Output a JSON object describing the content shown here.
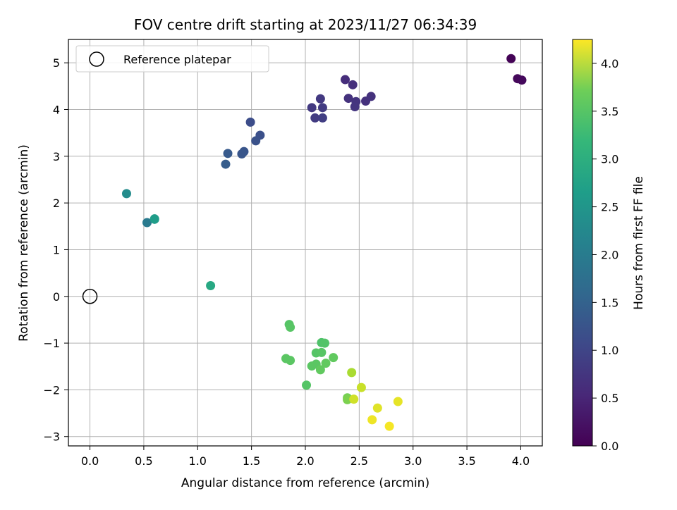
{
  "chart_data": {
    "type": "scatter",
    "title": "FOV centre drift starting at 2023/11/27 06:34:39",
    "xlabel": "Angular distance from reference (arcmin)",
    "ylabel": "Rotation from reference (arcmin)",
    "xlim": [
      -0.2,
      4.2
    ],
    "ylim": [
      -3.2,
      5.5
    ],
    "xticks": [
      "0.0",
      "0.5",
      "1.0",
      "1.5",
      "2.0",
      "2.5",
      "3.0",
      "3.5",
      "4.0"
    ],
    "yticks": [
      "−3",
      "−2",
      "−1",
      "0",
      "1",
      "2",
      "3",
      "4",
      "5"
    ],
    "grid": true,
    "legend": {
      "position": "top-left",
      "entries": [
        "Reference platepar"
      ]
    },
    "reference_point": {
      "x": 0.0,
      "y": 0.0
    },
    "colorbar": {
      "label": "Hours from first FF file",
      "colormap": "viridis",
      "range": [
        0.0,
        4.25
      ],
      "ticks": [
        "0.0",
        "0.5",
        "1.0",
        "1.5",
        "2.0",
        "2.5",
        "3.0",
        "3.5",
        "4.0"
      ]
    },
    "points": [
      {
        "x": 3.91,
        "y": 5.09,
        "c": 0.02
      },
      {
        "x": 3.97,
        "y": 4.66,
        "c": 0.08
      },
      {
        "x": 4.01,
        "y": 4.63,
        "c": 0.1
      },
      {
        "x": 2.37,
        "y": 4.64,
        "c": 0.55
      },
      {
        "x": 2.44,
        "y": 4.53,
        "c": 0.58
      },
      {
        "x": 2.4,
        "y": 4.24,
        "c": 0.62
      },
      {
        "x": 2.47,
        "y": 4.17,
        "c": 0.64
      },
      {
        "x": 2.46,
        "y": 4.06,
        "c": 0.66
      },
      {
        "x": 2.56,
        "y": 4.18,
        "c": 0.6
      },
      {
        "x": 2.61,
        "y": 4.28,
        "c": 0.62
      },
      {
        "x": 2.14,
        "y": 4.23,
        "c": 0.72
      },
      {
        "x": 2.06,
        "y": 4.04,
        "c": 0.72
      },
      {
        "x": 2.16,
        "y": 4.04,
        "c": 0.74
      },
      {
        "x": 2.09,
        "y": 3.82,
        "c": 0.76
      },
      {
        "x": 2.16,
        "y": 3.82,
        "c": 0.78
      },
      {
        "x": 1.49,
        "y": 3.73,
        "c": 1.0
      },
      {
        "x": 1.58,
        "y": 3.45,
        "c": 1.05
      },
      {
        "x": 1.54,
        "y": 3.33,
        "c": 1.08
      },
      {
        "x": 1.43,
        "y": 3.1,
        "c": 1.12
      },
      {
        "x": 1.41,
        "y": 3.05,
        "c": 1.14
      },
      {
        "x": 1.28,
        "y": 3.06,
        "c": 1.2
      },
      {
        "x": 1.26,
        "y": 2.83,
        "c": 1.25
      },
      {
        "x": 0.34,
        "y": 2.2,
        "c": 2.05
      },
      {
        "x": 0.53,
        "y": 1.58,
        "c": 1.75
      },
      {
        "x": 0.6,
        "y": 1.65,
        "c": 2.3
      },
      {
        "x": 0.6,
        "y": 1.66,
        "c": 2.35
      },
      {
        "x": 1.12,
        "y": 0.23,
        "c": 2.55
      },
      {
        "x": 1.85,
        "y": -0.6,
        "c": 3.1
      },
      {
        "x": 1.86,
        "y": -0.66,
        "c": 3.12
      },
      {
        "x": 2.15,
        "y": -0.99,
        "c": 3.05
      },
      {
        "x": 2.18,
        "y": -1.0,
        "c": 3.08
      },
      {
        "x": 2.1,
        "y": -1.21,
        "c": 3.1
      },
      {
        "x": 2.15,
        "y": -1.2,
        "c": 3.12
      },
      {
        "x": 1.82,
        "y": -1.33,
        "c": 3.15
      },
      {
        "x": 1.86,
        "y": -1.37,
        "c": 3.15
      },
      {
        "x": 2.19,
        "y": -1.43,
        "c": 3.2
      },
      {
        "x": 2.26,
        "y": -1.31,
        "c": 3.2
      },
      {
        "x": 2.1,
        "y": -1.45,
        "c": 3.15
      },
      {
        "x": 2.06,
        "y": -1.49,
        "c": 3.15
      },
      {
        "x": 2.14,
        "y": -1.57,
        "c": 3.2
      },
      {
        "x": 2.01,
        "y": -1.9,
        "c": 3.1
      },
      {
        "x": 2.43,
        "y": -1.63,
        "c": 3.7
      },
      {
        "x": 2.52,
        "y": -1.95,
        "c": 3.9
      },
      {
        "x": 2.39,
        "y": -2.17,
        "c": 3.35
      },
      {
        "x": 2.39,
        "y": -2.21,
        "c": 3.4
      },
      {
        "x": 2.45,
        "y": -2.2,
        "c": 3.95
      },
      {
        "x": 2.67,
        "y": -2.39,
        "c": 4.05
      },
      {
        "x": 2.86,
        "y": -2.25,
        "c": 4.1
      },
      {
        "x": 2.62,
        "y": -2.64,
        "c": 4.15
      },
      {
        "x": 2.78,
        "y": -2.78,
        "c": 4.2
      }
    ]
  }
}
